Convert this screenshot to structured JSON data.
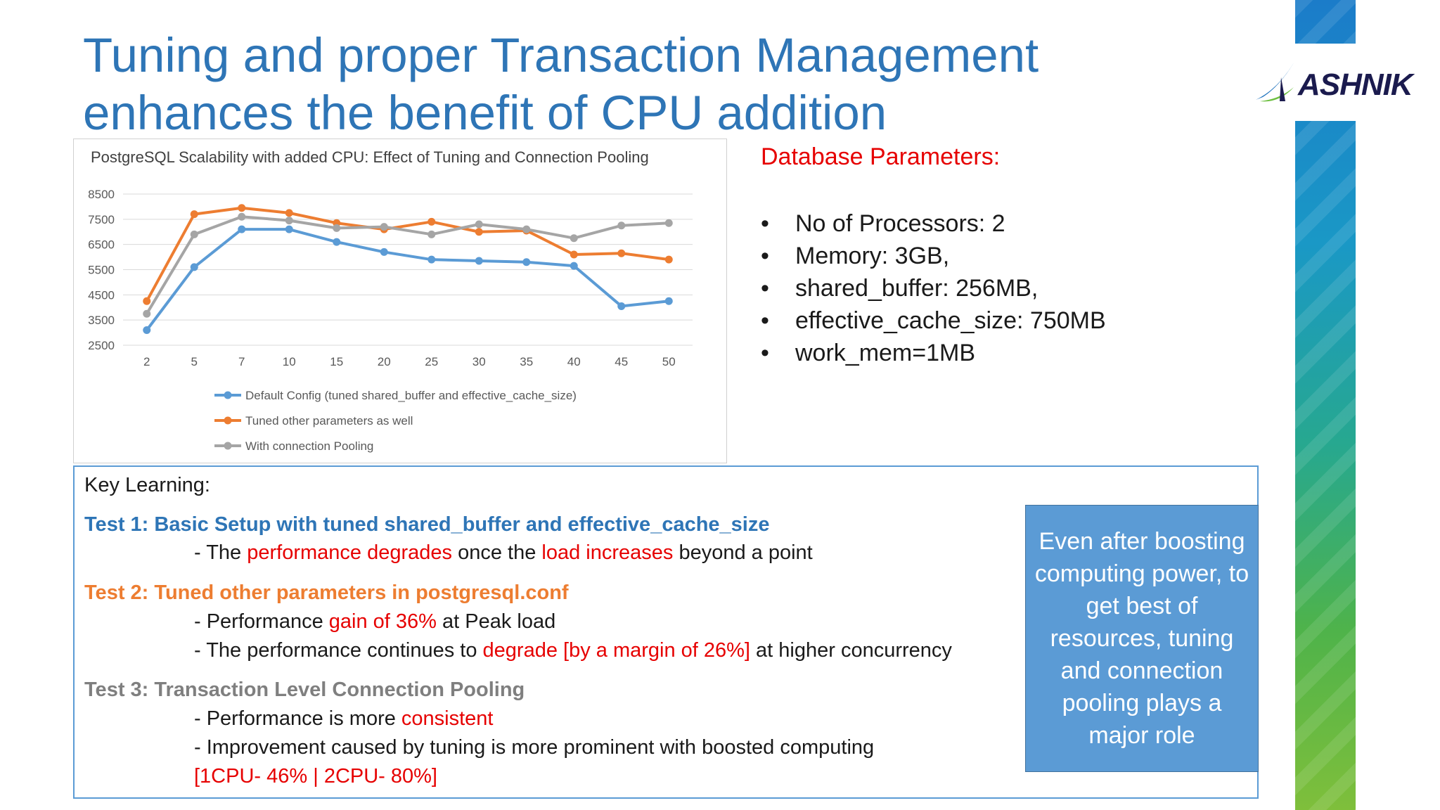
{
  "title": {
    "line1": "Tuning and proper Transaction Management",
    "line2": "enhances the benefit of CPU addition"
  },
  "logo": {
    "text": "ASHNIK",
    "icon": "swoosh-icon"
  },
  "chart_data": {
    "type": "line",
    "title": "PostgreSQL Scalability with added CPU: Effect of Tuning and Connection Pooling",
    "categories": [
      "2",
      "5",
      "7",
      "10",
      "15",
      "20",
      "25",
      "30",
      "35",
      "40",
      "45",
      "50"
    ],
    "y_ticks": [
      "8500",
      "7500",
      "6500",
      "5500",
      "4500",
      "3500",
      "2500"
    ],
    "ylim": [
      2500,
      8500
    ],
    "grid": true,
    "legend_position": "bottom",
    "series": [
      {
        "name": "Default Config (tuned shared_buffer and effective_cache_size)",
        "color": "#5b9bd5",
        "values": [
          3100,
          5600,
          7100,
          7100,
          6600,
          6200,
          5900,
          5850,
          5800,
          5650,
          4050,
          4250
        ]
      },
      {
        "name": "Tuned other parameters as well",
        "color": "#ed7d31",
        "values": [
          4250,
          7700,
          7950,
          7750,
          7350,
          7100,
          7400,
          7000,
          7050,
          6100,
          6150,
          5900
        ]
      },
      {
        "name": "With connection Pooling",
        "color": "#a5a5a5",
        "values": [
          3750,
          6900,
          7600,
          7450,
          7150,
          7200,
          6900,
          7300,
          7100,
          6750,
          7250,
          7350
        ]
      }
    ]
  },
  "params": {
    "heading": "Database Parameters:",
    "items": [
      "No of Processors: 2",
      "Memory: 3GB,",
      "shared_buffer: 256MB,",
      "effective_cache_size: 750MB",
      "work_mem=1MB"
    ]
  },
  "key_learning": {
    "heading": "Key Learning:",
    "test1": {
      "title": "Test 1: Basic Setup with tuned shared_buffer and effective_cache_size",
      "l1_a": "- The ",
      "l1_b": "performance degrades",
      "l1_c": " once the ",
      "l1_d": "load increases",
      "l1_e": " beyond a point"
    },
    "test2": {
      "title": "Test 2: Tuned other parameters in postgresql.conf",
      "l1_a": "- Performance ",
      "l1_b": "gain of 36%",
      "l1_c": " at Peak load",
      "l2_a": "- The performance continues to ",
      "l2_b": "degrade [by a margin of 26%]",
      "l2_c": " at higher concurrency"
    },
    "test3": {
      "title": "Test 3: Transaction Level Connection Pooling",
      "l1_a": "- Performance is more ",
      "l1_b": "consistent",
      "l2": "- Improvement caused by tuning is more prominent with boosted computing",
      "l3": "[1CPU- 46% | 2CPU- 80%]"
    }
  },
  "callout": {
    "text": "Even after boosting computing power, to get best of resources, tuning and connection pooling plays a major role"
  }
}
